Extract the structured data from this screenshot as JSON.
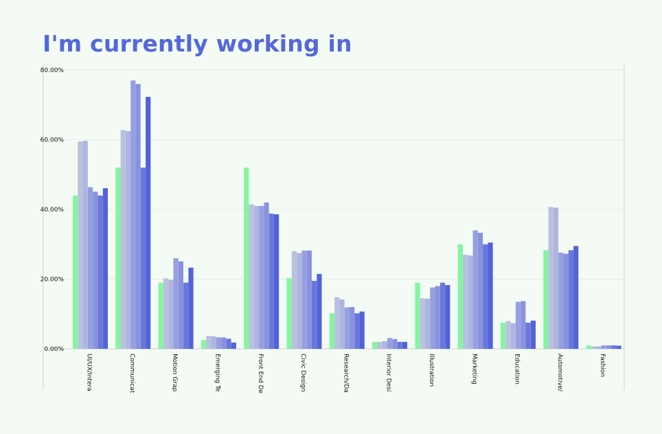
{
  "title": "I'm currently working in",
  "chart_data": {
    "type": "bar",
    "title": "I'm currently working in",
    "xlabel": "",
    "ylabel": "",
    "ylim": [
      0,
      80
    ],
    "y_ticks": [
      "0.00%",
      "20.00%",
      "40.00%",
      "60.00%",
      "80.00%"
    ],
    "grid": true,
    "categories": [
      "UI/UX/Intera",
      "Communicat",
      "Motion Grap",
      "Emerging Te",
      "Front End De",
      "Civic Design",
      "Research/Da",
      "Interior Desi",
      "Illustration",
      "Marketing",
      "Education",
      "Automotive/",
      "Fashion"
    ],
    "colors": [
      "#85f5a1",
      "#b9c1de",
      "#adb5e0",
      "#979fe1",
      "#8892df",
      "#6977db",
      "#5362da"
    ],
    "series": [
      {
        "values": [
          44,
          52,
          19,
          2.5,
          52,
          20.3,
          10.2,
          2,
          19,
          30,
          7.5,
          28.3,
          1
        ]
      },
      {
        "values": [
          59.5,
          62.8,
          20.2,
          3.7,
          41.5,
          28,
          14.8,
          2,
          14.5,
          27,
          8,
          40.7,
          0.7
        ]
      },
      {
        "values": [
          59.7,
          62.5,
          19.8,
          3.6,
          41,
          27.5,
          14.2,
          2.2,
          14.4,
          26.8,
          7.4,
          40.5,
          0.7
        ]
      },
      {
        "values": [
          46.4,
          77,
          26,
          3.3,
          41,
          28.2,
          11.9,
          3.1,
          17.6,
          34,
          13.5,
          27.6,
          1
        ]
      },
      {
        "values": [
          45.1,
          76,
          25.1,
          3.3,
          42,
          28.2,
          12,
          2.8,
          18,
          33.3,
          13.7,
          27.3,
          1
        ]
      },
      {
        "values": [
          44,
          52,
          19,
          2.9,
          38.8,
          19.5,
          10.2,
          2,
          19,
          30,
          7.5,
          28.3,
          1
        ]
      },
      {
        "values": [
          46.1,
          72.3,
          23.3,
          1.8,
          38.6,
          21.5,
          10.7,
          2,
          18.3,
          30.5,
          8.1,
          29.5,
          0.9
        ]
      }
    ]
  }
}
